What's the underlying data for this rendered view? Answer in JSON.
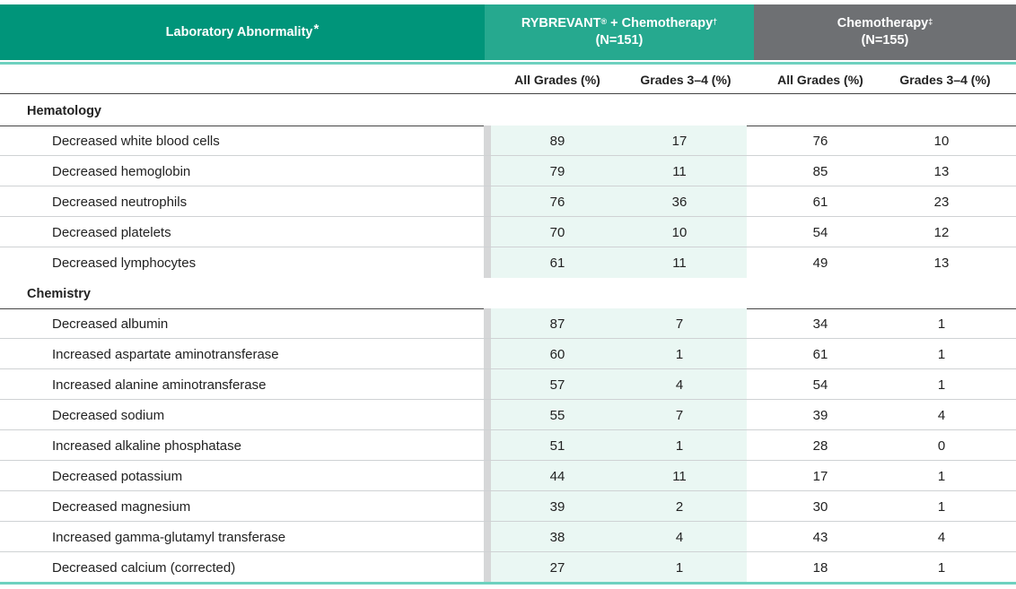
{
  "header": {
    "lab_label": "Laboratory Abnormality",
    "lab_mark": "*",
    "arm1_name": "RYBREVANT",
    "arm1_reg": "®",
    "arm1_suffix": " + Chemotherapy",
    "arm1_mark": "†",
    "arm1_n": "(N=151)",
    "arm2_name": "Chemotherapy",
    "arm2_mark": "‡",
    "arm2_n": "(N=155)"
  },
  "subheader": {
    "all_grades": "All Grades (%)",
    "grades_3_4": "Grades 3–4 (%)"
  },
  "sections": [
    {
      "title": "Hematology",
      "rows": [
        {
          "label": "Decreased white blood cells",
          "ryb_all": "89",
          "ryb_34": "17",
          "chemo_all": "76",
          "chemo_34": "10"
        },
        {
          "label": "Decreased hemoglobin",
          "ryb_all": "79",
          "ryb_34": "11",
          "chemo_all": "85",
          "chemo_34": "13"
        },
        {
          "label": "Decreased neutrophils",
          "ryb_all": "76",
          "ryb_34": "36",
          "chemo_all": "61",
          "chemo_34": "23"
        },
        {
          "label": "Decreased platelets",
          "ryb_all": "70",
          "ryb_34": "10",
          "chemo_all": "54",
          "chemo_34": "12"
        },
        {
          "label": "Decreased lymphocytes",
          "ryb_all": "61",
          "ryb_34": "11",
          "chemo_all": "49",
          "chemo_34": "13"
        }
      ]
    },
    {
      "title": "Chemistry",
      "rows": [
        {
          "label": "Decreased albumin",
          "ryb_all": "87",
          "ryb_34": "7",
          "chemo_all": "34",
          "chemo_34": "1"
        },
        {
          "label": "Increased aspartate aminotransferase",
          "ryb_all": "60",
          "ryb_34": "1",
          "chemo_all": "61",
          "chemo_34": "1"
        },
        {
          "label": "Increased alanine aminotransferase",
          "ryb_all": "57",
          "ryb_34": "4",
          "chemo_all": "54",
          "chemo_34": "1"
        },
        {
          "label": "Decreased sodium",
          "ryb_all": "55",
          "ryb_34": "7",
          "chemo_all": "39",
          "chemo_34": "4"
        },
        {
          "label": "Increased alkaline phosphatase",
          "ryb_all": "51",
          "ryb_34": "1",
          "chemo_all": "28",
          "chemo_34": "0"
        },
        {
          "label": "Decreased potassium",
          "ryb_all": "44",
          "ryb_34": "11",
          "chemo_all": "17",
          "chemo_34": "1"
        },
        {
          "label": "Decreased magnesium",
          "ryb_all": "39",
          "ryb_34": "2",
          "chemo_all": "30",
          "chemo_34": "1"
        },
        {
          "label": "Increased gamma-glutamyl transferase",
          "ryb_all": "38",
          "ryb_34": "4",
          "chemo_all": "43",
          "chemo_34": "4"
        },
        {
          "label": "Decreased calcium (corrected)",
          "ryb_all": "27",
          "ryb_34": "1",
          "chemo_all": "18",
          "chemo_34": "1"
        }
      ]
    }
  ],
  "colors": {
    "header_primary": "#00957a",
    "header_arm1": "#26a98f",
    "header_arm2": "#6e7073",
    "accent_line": "#6ed1bf",
    "arm1_column_bg": "#eaf7f3"
  }
}
